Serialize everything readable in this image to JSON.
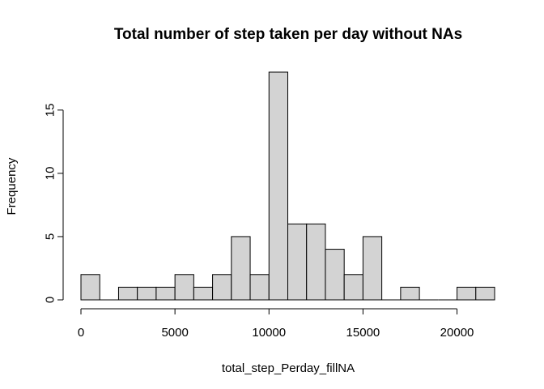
{
  "chart_data": {
    "type": "bar",
    "title": "Total number of step taken per day without NAs",
    "xlabel": "total_step_Perday_fillNA",
    "ylabel": "Frequency",
    "bin_width": 1000,
    "bins": [
      {
        "x0": 0,
        "x1": 1000,
        "count": 2
      },
      {
        "x0": 1000,
        "x1": 2000,
        "count": 0
      },
      {
        "x0": 2000,
        "x1": 3000,
        "count": 1
      },
      {
        "x0": 3000,
        "x1": 4000,
        "count": 1
      },
      {
        "x0": 4000,
        "x1": 5000,
        "count": 1
      },
      {
        "x0": 5000,
        "x1": 6000,
        "count": 2
      },
      {
        "x0": 6000,
        "x1": 7000,
        "count": 1
      },
      {
        "x0": 7000,
        "x1": 8000,
        "count": 2
      },
      {
        "x0": 8000,
        "x1": 9000,
        "count": 5
      },
      {
        "x0": 9000,
        "x1": 10000,
        "count": 2
      },
      {
        "x0": 10000,
        "x1": 11000,
        "count": 18
      },
      {
        "x0": 11000,
        "x1": 12000,
        "count": 6
      },
      {
        "x0": 12000,
        "x1": 13000,
        "count": 6
      },
      {
        "x0": 13000,
        "x1": 14000,
        "count": 4
      },
      {
        "x0": 14000,
        "x1": 15000,
        "count": 2
      },
      {
        "x0": 15000,
        "x1": 16000,
        "count": 5
      },
      {
        "x0": 16000,
        "x1": 17000,
        "count": 0
      },
      {
        "x0": 17000,
        "x1": 18000,
        "count": 1
      },
      {
        "x0": 18000,
        "x1": 19000,
        "count": 0
      },
      {
        "x0": 19000,
        "x1": 20000,
        "count": 0
      },
      {
        "x0": 20000,
        "x1": 21000,
        "count": 1
      },
      {
        "x0": 21000,
        "x1": 22000,
        "count": 1
      }
    ],
    "xlim": [
      0,
      22000
    ],
    "ylim": [
      0,
      18
    ],
    "x_ticks": [
      0,
      5000,
      10000,
      15000,
      20000
    ],
    "y_ticks": [
      0,
      5,
      10,
      15
    ],
    "grid": false,
    "legend": "none"
  }
}
